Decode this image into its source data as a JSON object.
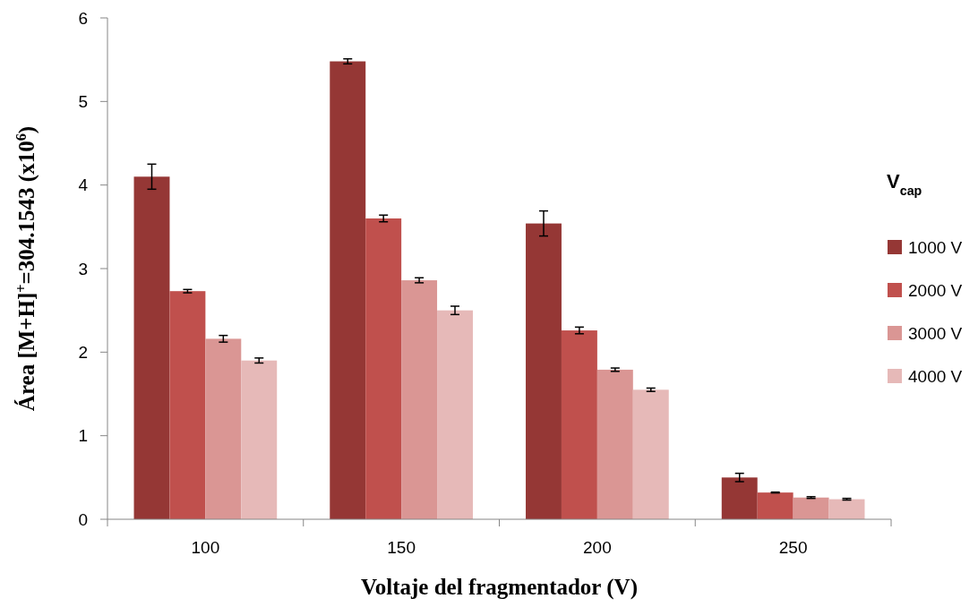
{
  "chart_data": {
    "type": "bar",
    "xlabel": "Voltaje del fragmentador (V)",
    "ylabel": "Área [M+H]$^{+}$=304.1543 (x10$^{6}$)",
    "legend_title": "V$_{cap}$",
    "categories": [
      "100",
      "150",
      "200",
      "250"
    ],
    "series": [
      {
        "name": "1000 V",
        "color": "#953735",
        "values": [
          4.1,
          5.48,
          3.54,
          0.5
        ],
        "errors": [
          0.15,
          0.03,
          0.15,
          0.05
        ]
      },
      {
        "name": "2000 V",
        "color": "#c0504d",
        "values": [
          2.73,
          3.6,
          2.26,
          0.32
        ],
        "errors": [
          0.02,
          0.04,
          0.04,
          0.005
        ]
      },
      {
        "name": "3000 V",
        "color": "#da9694",
        "values": [
          2.16,
          2.86,
          1.79,
          0.26
        ],
        "errors": [
          0.04,
          0.03,
          0.02,
          0.01
        ]
      },
      {
        "name": "4000 V",
        "color": "#e6b9b8",
        "values": [
          1.9,
          2.5,
          1.55,
          0.24
        ],
        "errors": [
          0.03,
          0.05,
          0.02,
          0.01
        ]
      }
    ],
    "ylim": [
      0,
      6
    ],
    "yticks": [
      0,
      1,
      2,
      3,
      4,
      5,
      6
    ],
    "grid": false,
    "legend": "right"
  }
}
